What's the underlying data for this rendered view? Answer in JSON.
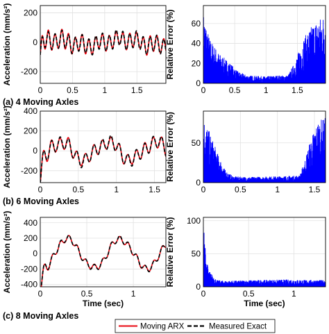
{
  "chart_data": [
    {
      "type": "line",
      "panel": "a-acc",
      "caption": "(a) 4 Moving Axles",
      "ylabel": "Acceleration (mm/s²)",
      "xlabel": "",
      "xlim": [
        0,
        1.95
      ],
      "ylim": [
        -280,
        250
      ],
      "xticks": [
        "0",
        "0.5",
        "1",
        "1.5"
      ],
      "xtick_values": [
        0,
        0.5,
        1,
        1.5
      ],
      "yticks": [
        "200",
        "0",
        "-200"
      ],
      "ytick_values": [
        200,
        0,
        -200
      ],
      "series": [
        {
          "name": "Moving ARX",
          "color": "#e8000b",
          "style": "solid"
        },
        {
          "name": "Measured Exact",
          "color": "#000000",
          "style": "dashed"
        }
      ],
      "signal": {
        "f1": 9.5,
        "a1": 55,
        "f2": 0.9,
        "a2": 20,
        "phase": 0.4,
        "start_y": -20,
        "start_dip": -100,
        "arx_error": 0.12
      }
    },
    {
      "type": "line",
      "panel": "a-err",
      "ylabel": "Relative Error (%)",
      "xlabel": "",
      "xlim": [
        0,
        1.95
      ],
      "ylim": [
        0,
        78
      ],
      "xticks": [
        "0",
        "0.5",
        "1",
        "1.5"
      ],
      "xtick_values": [
        0,
        0.5,
        1,
        1.5
      ],
      "yticks": [
        "0",
        "20",
        "40",
        "60"
      ],
      "ytick_values": [
        0,
        20,
        40,
        60
      ],
      "series": [
        {
          "name": "Relative Error",
          "color": "#0000ff",
          "style": "solid"
        }
      ],
      "envelope": [
        [
          0,
          70
        ],
        [
          0.1,
          45
        ],
        [
          0.25,
          30
        ],
        [
          0.4,
          22
        ],
        [
          0.55,
          12
        ],
        [
          0.7,
          8
        ],
        [
          1.0,
          7
        ],
        [
          1.2,
          8
        ],
        [
          1.35,
          8
        ],
        [
          1.45,
          20
        ],
        [
          1.6,
          45
        ],
        [
          1.75,
          60
        ],
        [
          1.95,
          70
        ]
      ]
    },
    {
      "type": "line",
      "panel": "b-acc",
      "caption": "(b) 6 Moving Axles",
      "ylabel": "Acceleration (mm/s²)",
      "xlabel": "",
      "xlim": [
        0,
        1.65
      ],
      "ylim": [
        -320,
        400
      ],
      "xticks": [
        "0",
        "0.5",
        "1",
        "1.5"
      ],
      "xtick_values": [
        0,
        0.5,
        1,
        1.5
      ],
      "yticks": [
        "400",
        "200",
        "0",
        "-200"
      ],
      "ytick_values": [
        400,
        200,
        0,
        -200
      ],
      "series": [
        {
          "name": "Moving ARX",
          "color": "#e8000b",
          "style": "solid"
        },
        {
          "name": "Measured Exact",
          "color": "#000000",
          "style": "dashed"
        }
      ],
      "signal": {
        "f1": 9.0,
        "a1": 65,
        "f2": 1.6,
        "a2": 90,
        "phase": -0.6,
        "start_y": -60,
        "start_dip": -150,
        "arx_error": 0.1
      }
    },
    {
      "type": "line",
      "panel": "b-err",
      "ylabel": "Relative Error (%)",
      "xlabel": "",
      "xlim": [
        0,
        1.65
      ],
      "ylim": [
        0,
        90
      ],
      "xticks": [
        "0",
        "0.5",
        "1",
        "1.5"
      ],
      "xtick_values": [
        0,
        0.5,
        1,
        1.5
      ],
      "yticks": [
        "0",
        "50"
      ],
      "ytick_values": [
        0,
        50
      ],
      "series": [
        {
          "name": "Relative Error",
          "color": "#0000ff",
          "style": "solid"
        }
      ],
      "envelope": [
        [
          0,
          82
        ],
        [
          0.1,
          60
        ],
        [
          0.2,
          35
        ],
        [
          0.3,
          15
        ],
        [
          0.4,
          8
        ],
        [
          0.6,
          7
        ],
        [
          1.0,
          8
        ],
        [
          1.3,
          9
        ],
        [
          1.36,
          25
        ],
        [
          1.45,
          55
        ],
        [
          1.55,
          78
        ],
        [
          1.65,
          82
        ]
      ]
    },
    {
      "type": "line",
      "panel": "c-acc",
      "caption": "(c) 8 Moving Axles",
      "ylabel": "Acceleration (mm/s²)",
      "xlabel": "Time (sec)",
      "xlim": [
        0,
        1.35
      ],
      "ylim": [
        -430,
        470
      ],
      "xticks": [
        "0",
        "0.5",
        "1"
      ],
      "xtick_values": [
        0,
        0.5,
        1
      ],
      "yticks": [
        "400",
        "200",
        "0",
        "-200",
        "-400"
      ],
      "ytick_values": [
        400,
        200,
        0,
        -200,
        -400
      ],
      "series": [
        {
          "name": "Moving ARX",
          "color": "#e8000b",
          "style": "solid"
        },
        {
          "name": "Measured Exact",
          "color": "#000000",
          "style": "dashed"
        }
      ],
      "signal": {
        "f1": 11.0,
        "a1": 40,
        "f2": 1.75,
        "a2": 190,
        "phase": -0.95,
        "start_y": 0,
        "start_dip": -330,
        "arx_error": 0.04
      }
    },
    {
      "type": "line",
      "panel": "c-err",
      "ylabel": "Relative Error (%)",
      "xlabel": "Time (sec)",
      "xlim": [
        0,
        1.35
      ],
      "ylim": [
        0,
        105
      ],
      "xticks": [
        "0",
        "0.5",
        "1"
      ],
      "xtick_values": [
        0,
        0.5,
        1
      ],
      "yticks": [
        "0",
        "50",
        "100"
      ],
      "ytick_values": [
        0,
        50,
        100
      ],
      "series": [
        {
          "name": "Relative Error",
          "color": "#0000ff",
          "style": "solid"
        }
      ],
      "envelope": [
        [
          0,
          100
        ],
        [
          0.03,
          45
        ],
        [
          0.06,
          25
        ],
        [
          0.1,
          18
        ],
        [
          0.15,
          10
        ],
        [
          0.25,
          9
        ],
        [
          0.5,
          10
        ],
        [
          0.9,
          11
        ],
        [
          1.35,
          10
        ]
      ]
    }
  ],
  "legend": {
    "arx_label": "Moving ARX",
    "exact_label": "Measured Exact",
    "arx_color": "#e8000b",
    "exact_color": "#000000"
  }
}
